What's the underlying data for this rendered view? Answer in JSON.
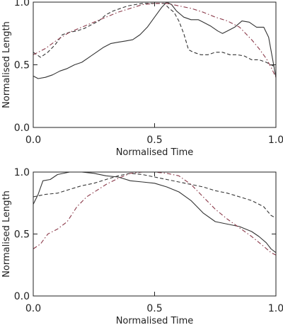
{
  "chart_data": [
    {
      "type": "line",
      "xlabel": "Normalised Time",
      "ylabel": "Normalised Length",
      "xlim": [
        0,
        1
      ],
      "ylim": [
        0,
        1
      ],
      "xticks": [
        "0.0",
        "0.5",
        "1.0"
      ],
      "yticks": [
        "0.0",
        "0.5",
        "1.0"
      ],
      "grid": false,
      "series": [
        {
          "style": "solid",
          "color": "#333333",
          "x": [
            0.0,
            0.02,
            0.05,
            0.08,
            0.11,
            0.14,
            0.17,
            0.2,
            0.23,
            0.26,
            0.29,
            0.32,
            0.35,
            0.38,
            0.41,
            0.44,
            0.47,
            0.5,
            0.53,
            0.55,
            0.57,
            0.59,
            0.62,
            0.65,
            0.68,
            0.7,
            0.73,
            0.76,
            0.78,
            0.8,
            0.83,
            0.86,
            0.89,
            0.92,
            0.95,
            0.97,
            1.0
          ],
          "y": [
            0.41,
            0.39,
            0.4,
            0.42,
            0.45,
            0.47,
            0.5,
            0.52,
            0.56,
            0.6,
            0.64,
            0.67,
            0.68,
            0.69,
            0.7,
            0.74,
            0.8,
            0.88,
            0.96,
            1.0,
            0.98,
            0.93,
            0.88,
            0.86,
            0.86,
            0.84,
            0.81,
            0.77,
            0.75,
            0.77,
            0.8,
            0.85,
            0.84,
            0.8,
            0.8,
            0.72,
            0.4
          ]
        },
        {
          "style": "dashed",
          "color": "#333333",
          "x": [
            0.0,
            0.03,
            0.06,
            0.09,
            0.12,
            0.15,
            0.18,
            0.21,
            0.24,
            0.27,
            0.3,
            0.33,
            0.36,
            0.39,
            0.42,
            0.45,
            0.48,
            0.51,
            0.54,
            0.56,
            0.58,
            0.6,
            0.62,
            0.64,
            0.66,
            0.69,
            0.72,
            0.75,
            0.78,
            0.81,
            0.84,
            0.87,
            0.9,
            0.93,
            0.96,
            0.98,
            1.0
          ],
          "y": [
            0.6,
            0.56,
            0.6,
            0.66,
            0.74,
            0.76,
            0.77,
            0.79,
            0.82,
            0.85,
            0.9,
            0.93,
            0.95,
            0.97,
            0.98,
            0.99,
            0.99,
            0.99,
            0.99,
            0.95,
            0.92,
            0.85,
            0.75,
            0.62,
            0.6,
            0.58,
            0.58,
            0.6,
            0.6,
            0.58,
            0.58,
            0.57,
            0.54,
            0.54,
            0.52,
            0.5,
            0.48
          ]
        },
        {
          "style": "dash-dot",
          "color": "#8b3a4a",
          "x": [
            0.0,
            0.05,
            0.1,
            0.15,
            0.2,
            0.25,
            0.3,
            0.35,
            0.4,
            0.45,
            0.5,
            0.55,
            0.6,
            0.65,
            0.7,
            0.75,
            0.8,
            0.85,
            0.9,
            0.93,
            0.96,
            0.98,
            1.0
          ],
          "y": [
            0.58,
            0.63,
            0.7,
            0.76,
            0.8,
            0.84,
            0.88,
            0.92,
            0.95,
            0.98,
            0.99,
            0.99,
            0.97,
            0.95,
            0.92,
            0.88,
            0.85,
            0.8,
            0.7,
            0.63,
            0.55,
            0.48,
            0.4
          ]
        }
      ]
    },
    {
      "type": "line",
      "xlabel": "Normalised Time",
      "ylabel": "Normalised Length",
      "xlim": [
        0,
        1
      ],
      "ylim": [
        0,
        1
      ],
      "xticks": [
        "0.0",
        "0.5",
        "1.0"
      ],
      "yticks": [
        "0.0",
        "0.5",
        "1.0"
      ],
      "grid": false,
      "series": [
        {
          "style": "solid",
          "color": "#333333",
          "x": [
            0.0,
            0.02,
            0.04,
            0.07,
            0.1,
            0.15,
            0.2,
            0.25,
            0.3,
            0.35,
            0.4,
            0.45,
            0.5,
            0.55,
            0.6,
            0.65,
            0.7,
            0.75,
            0.8,
            0.85,
            0.9,
            0.93,
            0.96,
            0.98,
            1.0
          ],
          "y": [
            0.74,
            0.82,
            0.93,
            0.94,
            0.98,
            1.0,
            1.0,
            0.99,
            0.97,
            0.96,
            0.93,
            0.92,
            0.91,
            0.88,
            0.84,
            0.77,
            0.67,
            0.6,
            0.58,
            0.56,
            0.52,
            0.48,
            0.43,
            0.38,
            0.35
          ]
        },
        {
          "style": "dashed",
          "color": "#333333",
          "x": [
            0.0,
            0.05,
            0.1,
            0.15,
            0.2,
            0.25,
            0.3,
            0.35,
            0.4,
            0.45,
            0.5,
            0.55,
            0.6,
            0.65,
            0.7,
            0.75,
            0.8,
            0.85,
            0.9,
            0.95,
            0.98,
            1.0
          ],
          "y": [
            0.8,
            0.82,
            0.83,
            0.86,
            0.89,
            0.91,
            0.94,
            0.97,
            0.99,
            0.98,
            0.96,
            0.94,
            0.92,
            0.9,
            0.88,
            0.85,
            0.83,
            0.8,
            0.77,
            0.72,
            0.65,
            0.63
          ]
        },
        {
          "style": "dash-dot",
          "color": "#8b3a4a",
          "x": [
            0.0,
            0.03,
            0.06,
            0.1,
            0.14,
            0.18,
            0.22,
            0.26,
            0.3,
            0.35,
            0.4,
            0.45,
            0.5,
            0.55,
            0.6,
            0.65,
            0.7,
            0.75,
            0.8,
            0.85,
            0.9,
            0.95,
            0.98,
            1.0
          ],
          "y": [
            0.38,
            0.42,
            0.5,
            0.54,
            0.6,
            0.72,
            0.8,
            0.85,
            0.9,
            0.95,
            0.99,
            1.0,
            1.0,
            0.99,
            0.97,
            0.9,
            0.8,
            0.7,
            0.62,
            0.55,
            0.48,
            0.4,
            0.35,
            0.33
          ]
        }
      ]
    }
  ]
}
